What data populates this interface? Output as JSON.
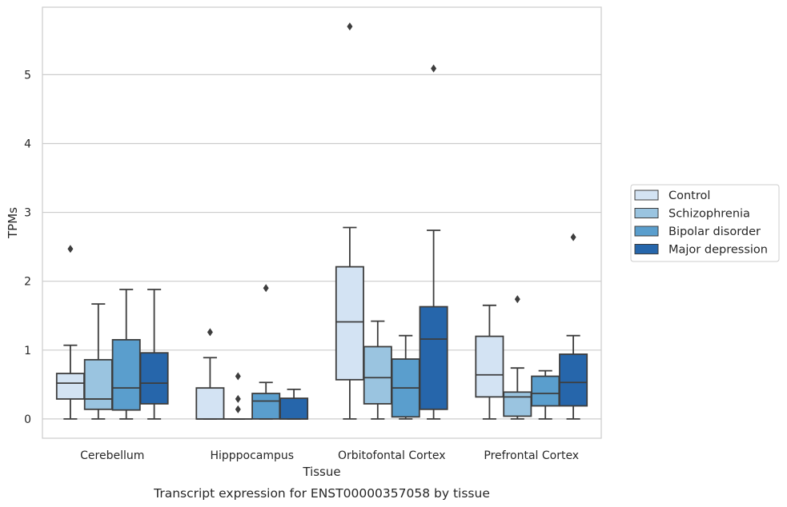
{
  "chart_data": {
    "type": "boxplot",
    "caption": "Transcript expression for ENST00000357058 by tissue",
    "xlabel": "Tissue",
    "ylabel": "TPMs",
    "ylim": [
      -0.28,
      5.98
    ],
    "yticks": [
      0,
      1,
      2,
      3,
      4,
      5
    ],
    "grid": true,
    "legend_position": "right",
    "categories": [
      "Cerebellum",
      "Hipppocampus",
      "Orbitofontal Cortex",
      "Prefrontal Cortex"
    ],
    "series": [
      {
        "name": "Control",
        "color": "#d3e3f3",
        "boxes": [
          {
            "whisker_low": 0.0,
            "q1": 0.29,
            "median": 0.52,
            "q3": 0.66,
            "whisker_high": 1.07,
            "outliers": [
              2.47
            ]
          },
          {
            "whisker_low": 0.0,
            "q1": 0.0,
            "median": 0.0,
            "q3": 0.45,
            "whisker_high": 0.89,
            "outliers": [
              1.26
            ]
          },
          {
            "whisker_low": 0.0,
            "q1": 0.57,
            "median": 1.41,
            "q3": 2.21,
            "whisker_high": 2.78,
            "outliers": [
              5.7
            ]
          },
          {
            "whisker_low": 0.0,
            "q1": 0.32,
            "median": 0.64,
            "q3": 1.2,
            "whisker_high": 1.65,
            "outliers": []
          }
        ]
      },
      {
        "name": "Schizophrenia",
        "color": "#9ac4e0",
        "boxes": [
          {
            "whisker_low": 0.0,
            "q1": 0.14,
            "median": 0.29,
            "q3": 0.86,
            "whisker_high": 1.67,
            "outliers": []
          },
          {
            "whisker_low": 0.0,
            "q1": 0.0,
            "median": 0.0,
            "q3": 0.0,
            "whisker_high": 0.0,
            "outliers": [
              0.14,
              0.29,
              0.62
            ]
          },
          {
            "whisker_low": 0.0,
            "q1": 0.22,
            "median": 0.6,
            "q3": 1.05,
            "whisker_high": 1.42,
            "outliers": []
          },
          {
            "whisker_low": 0.0,
            "q1": 0.04,
            "median": 0.32,
            "q3": 0.39,
            "whisker_high": 0.74,
            "outliers": [
              1.74
            ]
          }
        ]
      },
      {
        "name": "Bipolar disorder",
        "color": "#5a9ecd",
        "boxes": [
          {
            "whisker_low": 0.0,
            "q1": 0.13,
            "median": 0.45,
            "q3": 1.15,
            "whisker_high": 1.88,
            "outliers": []
          },
          {
            "whisker_low": 0.0,
            "q1": 0.0,
            "median": 0.26,
            "q3": 0.37,
            "whisker_high": 0.53,
            "outliers": [
              1.9
            ]
          },
          {
            "whisker_low": 0.0,
            "q1": 0.03,
            "median": 0.45,
            "q3": 0.87,
            "whisker_high": 1.21,
            "outliers": []
          },
          {
            "whisker_low": 0.0,
            "q1": 0.19,
            "median": 0.37,
            "q3": 0.62,
            "whisker_high": 0.7,
            "outliers": []
          }
        ]
      },
      {
        "name": "Major depression",
        "color": "#2666ab",
        "boxes": [
          {
            "whisker_low": 0.0,
            "q1": 0.22,
            "median": 0.52,
            "q3": 0.96,
            "whisker_high": 1.88,
            "outliers": []
          },
          {
            "whisker_low": 0.0,
            "q1": 0.0,
            "median": 0.0,
            "q3": 0.3,
            "whisker_high": 0.43,
            "outliers": []
          },
          {
            "whisker_low": 0.0,
            "q1": 0.14,
            "median": 1.16,
            "q3": 1.63,
            "whisker_high": 2.74,
            "outliers": [
              5.09
            ]
          },
          {
            "whisker_low": 0.0,
            "q1": 0.19,
            "median": 0.53,
            "q3": 0.94,
            "whisker_high": 1.21,
            "outliers": [
              2.64
            ]
          }
        ]
      }
    ]
  }
}
